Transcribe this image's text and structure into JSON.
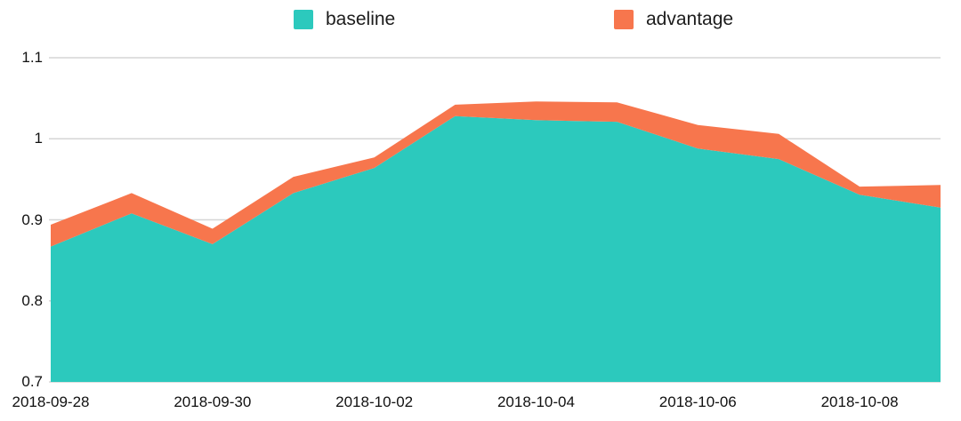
{
  "legend": {
    "items": [
      {
        "label": "baseline",
        "color": "#2cc9bd"
      },
      {
        "label": "advantage",
        "color": "#f7764d"
      }
    ]
  },
  "chart_data": {
    "type": "area",
    "stacked": true,
    "title": "",
    "xlabel": "",
    "ylabel": "",
    "x": [
      "2018-09-28",
      "2018-09-29",
      "2018-09-30",
      "2018-10-01",
      "2018-10-02",
      "2018-10-03",
      "2018-10-04",
      "2018-10-05",
      "2018-10-06",
      "2018-10-07",
      "2018-10-08",
      "2018-10-09"
    ],
    "series": [
      {
        "name": "baseline",
        "color": "#2cc9bd",
        "values": [
          0.867,
          0.908,
          0.87,
          0.933,
          0.964,
          1.028,
          1.023,
          1.021,
          0.988,
          0.975,
          0.931,
          0.915
        ]
      },
      {
        "name": "advantage",
        "color": "#f7764d",
        "values": [
          0.027,
          0.025,
          0.019,
          0.02,
          0.013,
          0.014,
          0.023,
          0.024,
          0.029,
          0.031,
          0.01,
          0.028
        ]
      }
    ],
    "ylim": [
      0.7,
      1.1
    ],
    "yticks": {
      "values": [
        0.7,
        0.8,
        0.9,
        1.0,
        1.1
      ],
      "labels": [
        "0.7",
        "0.8",
        "0.9",
        "1",
        "1.1"
      ]
    },
    "xticks": {
      "indices": [
        0,
        2,
        4,
        6,
        8,
        10
      ],
      "labels": [
        "2018-09-28",
        "2018-09-30",
        "2018-10-02",
        "2018-10-04",
        "2018-10-06",
        "2018-10-08"
      ]
    },
    "grid": true,
    "legend_position": "top",
    "colors": {
      "grid": "#d6d6d6",
      "text": "#111111",
      "background": "#ffffff"
    }
  }
}
